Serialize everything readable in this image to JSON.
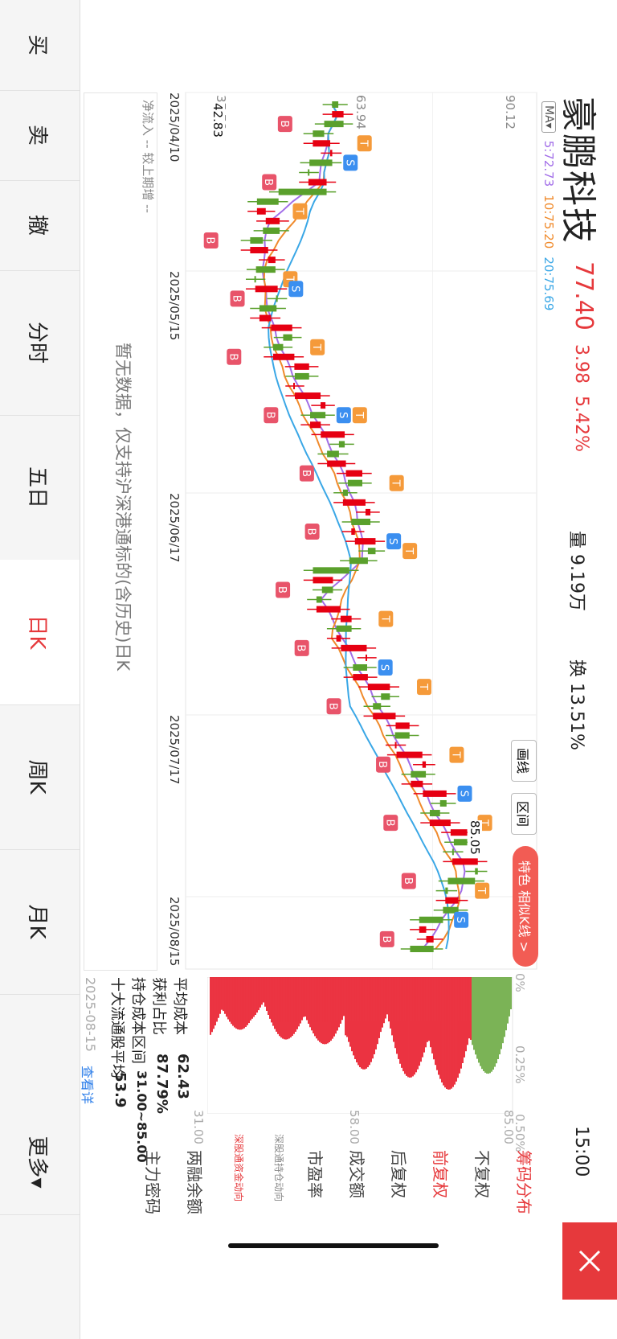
{
  "stock": {
    "name": "豪鹏科技",
    "price": "77.40",
    "change": "3.98",
    "change_pct": "5.42%",
    "volume": "量 9.19万",
    "turnover": "换 13.51%",
    "time": "15:00"
  },
  "ma": {
    "selector": "MA▾",
    "ma5": "5:72.73",
    "ma10": "10:75.20",
    "ma20": "20:75.69",
    "colors": {
      "ma5": "#a26ee8",
      "ma10": "#f08a2b",
      "ma20": "#3aa7e6"
    }
  },
  "axis": {
    "y_top": "90.12",
    "y_mid": "63.94",
    "y_low": "37.76",
    "min_label": "42.83",
    "max_label": "85.05",
    "dates": [
      "2025/04/10",
      "2025/05/15",
      "2025/06/17",
      "2025/07/17",
      "2025/08/15"
    ]
  },
  "buttons": {
    "draw": "画线",
    "range": "区间",
    "special": "特色 相似K线 >"
  },
  "flow": {
    "label": "净流入 -- 较上期增 --",
    "empty": "暂无数据，仅支持沪深港通标的(含历史)日K"
  },
  "chip": {
    "pct_labels": [
      "0%",
      "0.25%",
      "0.50%"
    ],
    "price_labels": [
      "85.00",
      "58.00",
      "31.00"
    ],
    "avg_cost_label": "平均成本",
    "avg_cost": "62.43",
    "profit_label": "获利占比",
    "profit": "87.79%",
    "range_label": "持仓成本区间",
    "range": "31.00~85.00",
    "top10_label": "十大流通股平均",
    "top10": "53.9",
    "date": "2025-08-15",
    "detail_link": "查看详情",
    "colors": {
      "profit": "#e60012",
      "loss": "#5aa02c"
    }
  },
  "side_tabs": {
    "chip": "筹码分布",
    "no_adj": "不复权",
    "pre_adj": "前复权",
    "post_adj": "后复权",
    "amount": "成交额",
    "pe": "市盈率",
    "hk_hold": "深股通持仓动向",
    "hk_flow": "深股通资金动向",
    "margin": "两融余额",
    "main_force": "主力密码"
  },
  "bottom": {
    "buy": "买",
    "sell": "卖",
    "cancel": "撤",
    "intraday": "分时",
    "five_day": "五日",
    "daily": "日K",
    "weekly": "周K",
    "monthly": "月K",
    "more": "更多▾"
  },
  "markers": {
    "buy": "B",
    "sell": "S",
    "t": "T"
  },
  "colors": {
    "up": "#e60012",
    "down": "#5aa02c",
    "accent": "#e6393c",
    "buy_badge": "#e8546a",
    "sell_badge": "#3b8ff0",
    "t_badge": "#f59a3a"
  }
}
